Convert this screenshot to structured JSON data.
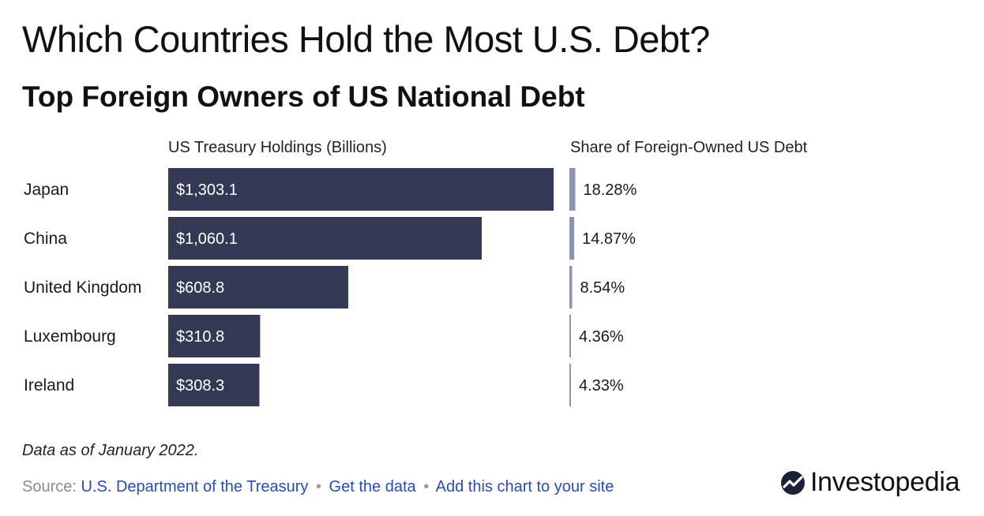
{
  "title": "Which Countries Hold the Most U.S. Debt?",
  "subtitle": "Top Foreign Owners of US National Debt",
  "note": "Data as of January 2022.",
  "source": {
    "prefix": "Source:",
    "link": "U.S. Department of the Treasury",
    "get_data": "Get the data",
    "add_chart": "Add this chart to your site",
    "separator": "•"
  },
  "brand": {
    "name": "Investopedia",
    "icon": "investopedia-logo-icon"
  },
  "colors": {
    "bar": "#343a55",
    "share_bar": "#8c93b0",
    "link": "#2a4cb0"
  },
  "chart_data": {
    "type": "bar",
    "orientation": "horizontal",
    "columns": {
      "values": "US Treasury Holdings (Billions)",
      "share": "Share of Foreign-Owned US Debt"
    },
    "categories": [
      "Japan",
      "China",
      "United Kingdom",
      "Luxembourg",
      "Ireland"
    ],
    "values": [
      1303.1,
      1060.1,
      608.8,
      310.8,
      308.3
    ],
    "value_labels": [
      "$1,303.1",
      "$1,060.1",
      "$608.8",
      "$310.8",
      "$308.3"
    ],
    "share": [
      18.28,
      14.87,
      8.54,
      4.36,
      4.33
    ],
    "share_labels": [
      "18.28%",
      "14.87%",
      "8.54%",
      "4.36%",
      "4.33%"
    ],
    "xlim": [
      0,
      1303.1
    ],
    "grid": false
  }
}
